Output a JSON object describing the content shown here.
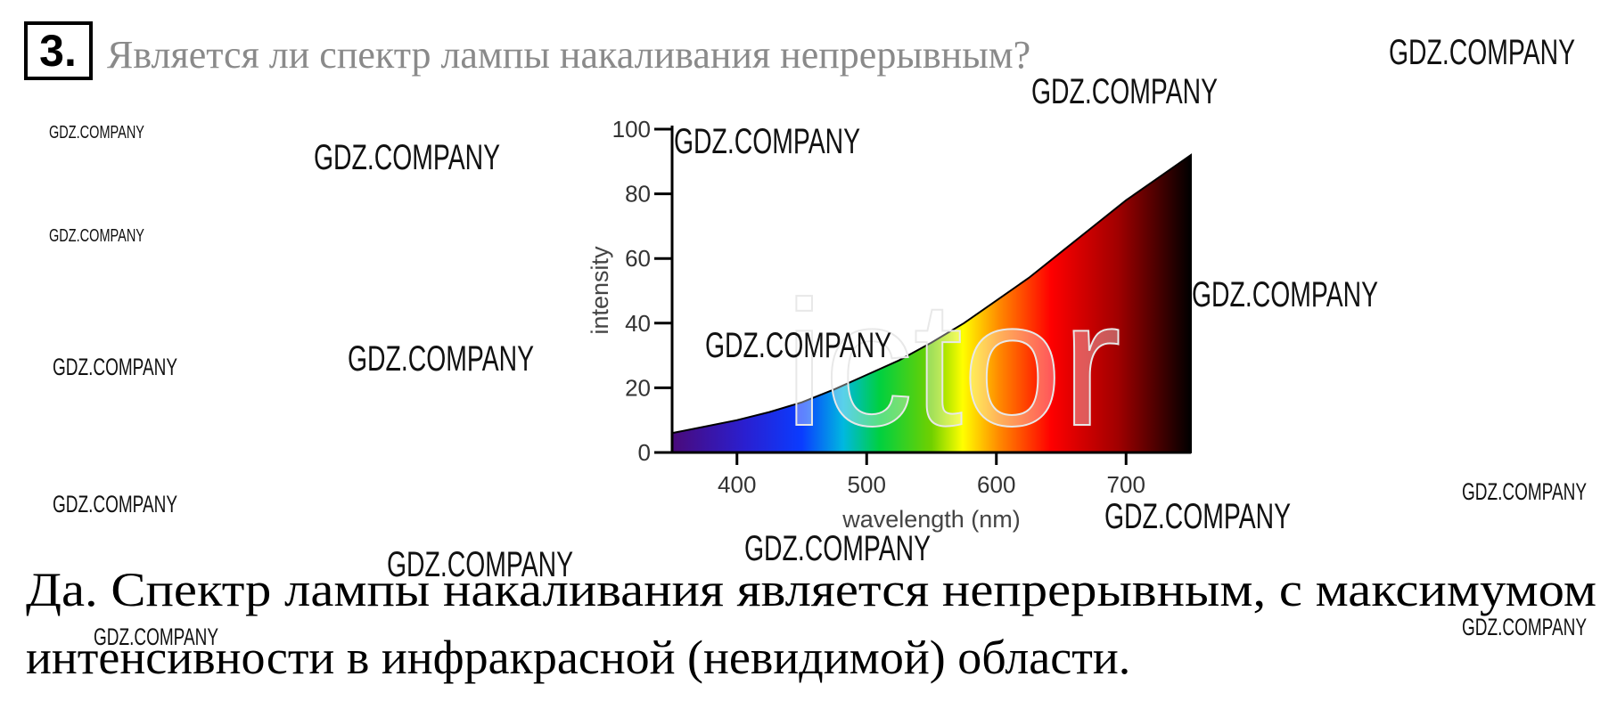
{
  "header": {
    "number": "3.",
    "question": "Является ли спектр лампы накаливания непрерывным?"
  },
  "figure": {
    "type": "area",
    "x_label": "wavelength (nm)",
    "y_label": "intensity",
    "xlim": [
      350,
      750
    ],
    "ylim": [
      0,
      100
    ],
    "xticks": [
      400,
      500,
      600,
      700
    ],
    "yticks": [
      0,
      20,
      40,
      60,
      80,
      100
    ],
    "x": [
      350,
      375,
      400,
      425,
      450,
      475,
      500,
      525,
      550,
      575,
      600,
      625,
      650,
      675,
      700,
      725,
      750
    ],
    "values": [
      6,
      8,
      10,
      12.5,
      15.5,
      19.5,
      24,
      28.5,
      34,
      40,
      47,
      54,
      62,
      70,
      78,
      85,
      92
    ]
  },
  "overlay_text": "ictor",
  "answer": {
    "lines": [
      "Да. Спектр лампы накаливания является непрерывным, с максимумом",
      "интенсивности в инфракрасной (невидимой) области."
    ]
  },
  "watermarks": [
    "GDZ.COMPANY",
    "GDZ.COMPANY",
    "GDZ.COMPANY",
    "GDZ.COMPANY",
    "GDZ.COMPANY",
    "GDZ.COMPANY",
    "GDZ.COMPANY",
    "GDZ.COMPANY",
    "GDZ.COMPANY",
    "GDZ.COMPANY",
    "GDZ.COMPANY",
    "GDZ.COMPANY",
    "GDZ.COMPANY",
    "GDZ.COMPANY",
    "GDZ.COMPANY",
    "GDZ.COMPANY",
    "GDZ.COMPANY"
  ]
}
